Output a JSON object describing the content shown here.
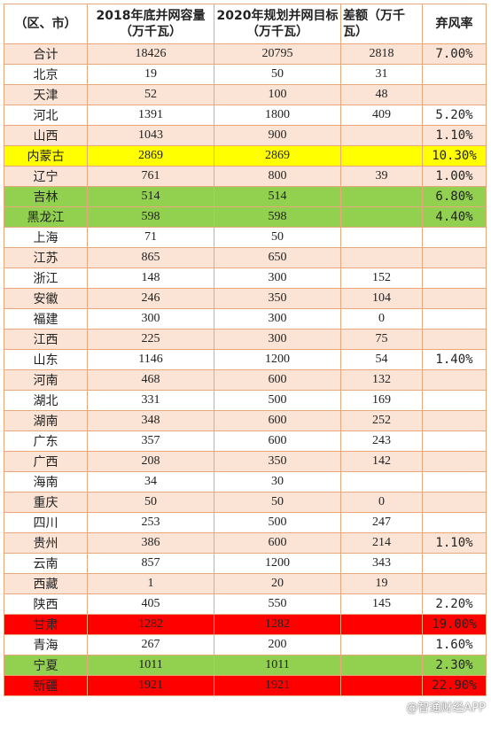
{
  "headers": {
    "region": "（区、市）",
    "capacity_2018": "2018年底并网容量（万千瓦）",
    "target_2020": "2020年规划并网目标（万千瓦）",
    "gap": "差额（万千瓦）",
    "curtail_rate": "弃风率"
  },
  "rows": [
    {
      "region": "合计",
      "c2018": "18426",
      "t2020": "20795",
      "gap": "2818",
      "rate": "7.00%",
      "style": "alt"
    },
    {
      "region": "北京",
      "c2018": "19",
      "t2020": "50",
      "gap": "31",
      "rate": "",
      "style": "plain"
    },
    {
      "region": "天津",
      "c2018": "52",
      "t2020": "100",
      "gap": "48",
      "rate": "",
      "style": "alt"
    },
    {
      "region": "河北",
      "c2018": "1391",
      "t2020": "1800",
      "gap": "409",
      "rate": "5.20%",
      "style": "plain"
    },
    {
      "region": "山西",
      "c2018": "1043",
      "t2020": "900",
      "gap": "",
      "rate": "1.10%",
      "style": "alt"
    },
    {
      "region": "内蒙古",
      "c2018": "2869",
      "t2020": "2869",
      "gap": "",
      "rate": "10.30%",
      "style": "hl-yellow"
    },
    {
      "region": "辽宁",
      "c2018": "761",
      "t2020": "800",
      "gap": "39",
      "rate": "1.00%",
      "style": "alt"
    },
    {
      "region": "吉林",
      "c2018": "514",
      "t2020": "514",
      "gap": "",
      "rate": "6.80%",
      "style": "hl-green"
    },
    {
      "region": "黑龙江",
      "c2018": "598",
      "t2020": "598",
      "gap": "",
      "rate": "4.40%",
      "style": "hl-green"
    },
    {
      "region": "上海",
      "c2018": "71",
      "t2020": "50",
      "gap": "",
      "rate": "",
      "style": "plain"
    },
    {
      "region": "江苏",
      "c2018": "865",
      "t2020": "650",
      "gap": "",
      "rate": "",
      "style": "alt"
    },
    {
      "region": "浙江",
      "c2018": "148",
      "t2020": "300",
      "gap": "152",
      "rate": "",
      "style": "plain"
    },
    {
      "region": "安徽",
      "c2018": "246",
      "t2020": "350",
      "gap": "104",
      "rate": "",
      "style": "alt"
    },
    {
      "region": "福建",
      "c2018": "300",
      "t2020": "300",
      "gap": "0",
      "rate": "",
      "style": "plain"
    },
    {
      "region": "江西",
      "c2018": "225",
      "t2020": "300",
      "gap": "75",
      "rate": "",
      "style": "alt"
    },
    {
      "region": "山东",
      "c2018": "1146",
      "t2020": "1200",
      "gap": "54",
      "rate": "1.40%",
      "style": "plain"
    },
    {
      "region": "河南",
      "c2018": "468",
      "t2020": "600",
      "gap": "132",
      "rate": "",
      "style": "alt"
    },
    {
      "region": "湖北",
      "c2018": "331",
      "t2020": "500",
      "gap": "169",
      "rate": "",
      "style": "plain"
    },
    {
      "region": "湖南",
      "c2018": "348",
      "t2020": "600",
      "gap": "252",
      "rate": "",
      "style": "alt"
    },
    {
      "region": "广东",
      "c2018": "357",
      "t2020": "600",
      "gap": "243",
      "rate": "",
      "style": "plain"
    },
    {
      "region": "广西",
      "c2018": "208",
      "t2020": "350",
      "gap": "142",
      "rate": "",
      "style": "alt"
    },
    {
      "region": "海南",
      "c2018": "34",
      "t2020": "30",
      "gap": "",
      "rate": "",
      "style": "plain"
    },
    {
      "region": "重庆",
      "c2018": "50",
      "t2020": "50",
      "gap": "0",
      "rate": "",
      "style": "alt"
    },
    {
      "region": "四川",
      "c2018": "253",
      "t2020": "500",
      "gap": "247",
      "rate": "",
      "style": "plain"
    },
    {
      "region": "贵州",
      "c2018": "386",
      "t2020": "600",
      "gap": "214",
      "rate": "1.10%",
      "style": "alt"
    },
    {
      "region": "云南",
      "c2018": "857",
      "t2020": "1200",
      "gap": "343",
      "rate": "",
      "style": "plain"
    },
    {
      "region": "西藏",
      "c2018": "1",
      "t2020": "20",
      "gap": "19",
      "rate": "",
      "style": "alt"
    },
    {
      "region": "陕西",
      "c2018": "405",
      "t2020": "550",
      "gap": "145",
      "rate": "2.20%",
      "style": "plain"
    },
    {
      "region": "甘肃",
      "c2018": "1282",
      "t2020": "1282",
      "gap": "",
      "rate": "19.00%",
      "style": "hl-red"
    },
    {
      "region": "青海",
      "c2018": "267",
      "t2020": "200",
      "gap": "",
      "rate": "1.60%",
      "style": "plain"
    },
    {
      "region": "宁夏",
      "c2018": "1011",
      "t2020": "1011",
      "gap": "",
      "rate": "2.30%",
      "style": "hl-green"
    },
    {
      "region": "新疆",
      "c2018": "1921",
      "t2020": "1921",
      "gap": "",
      "rate": "22.90%",
      "style": "hl-red"
    }
  ],
  "watermark": "@智通财经APP",
  "colors": {
    "alt_row": "#fbe4d5",
    "yellow": "#ffff00",
    "green": "#92d050",
    "red": "#ff0000",
    "border": "#e8a87c"
  }
}
